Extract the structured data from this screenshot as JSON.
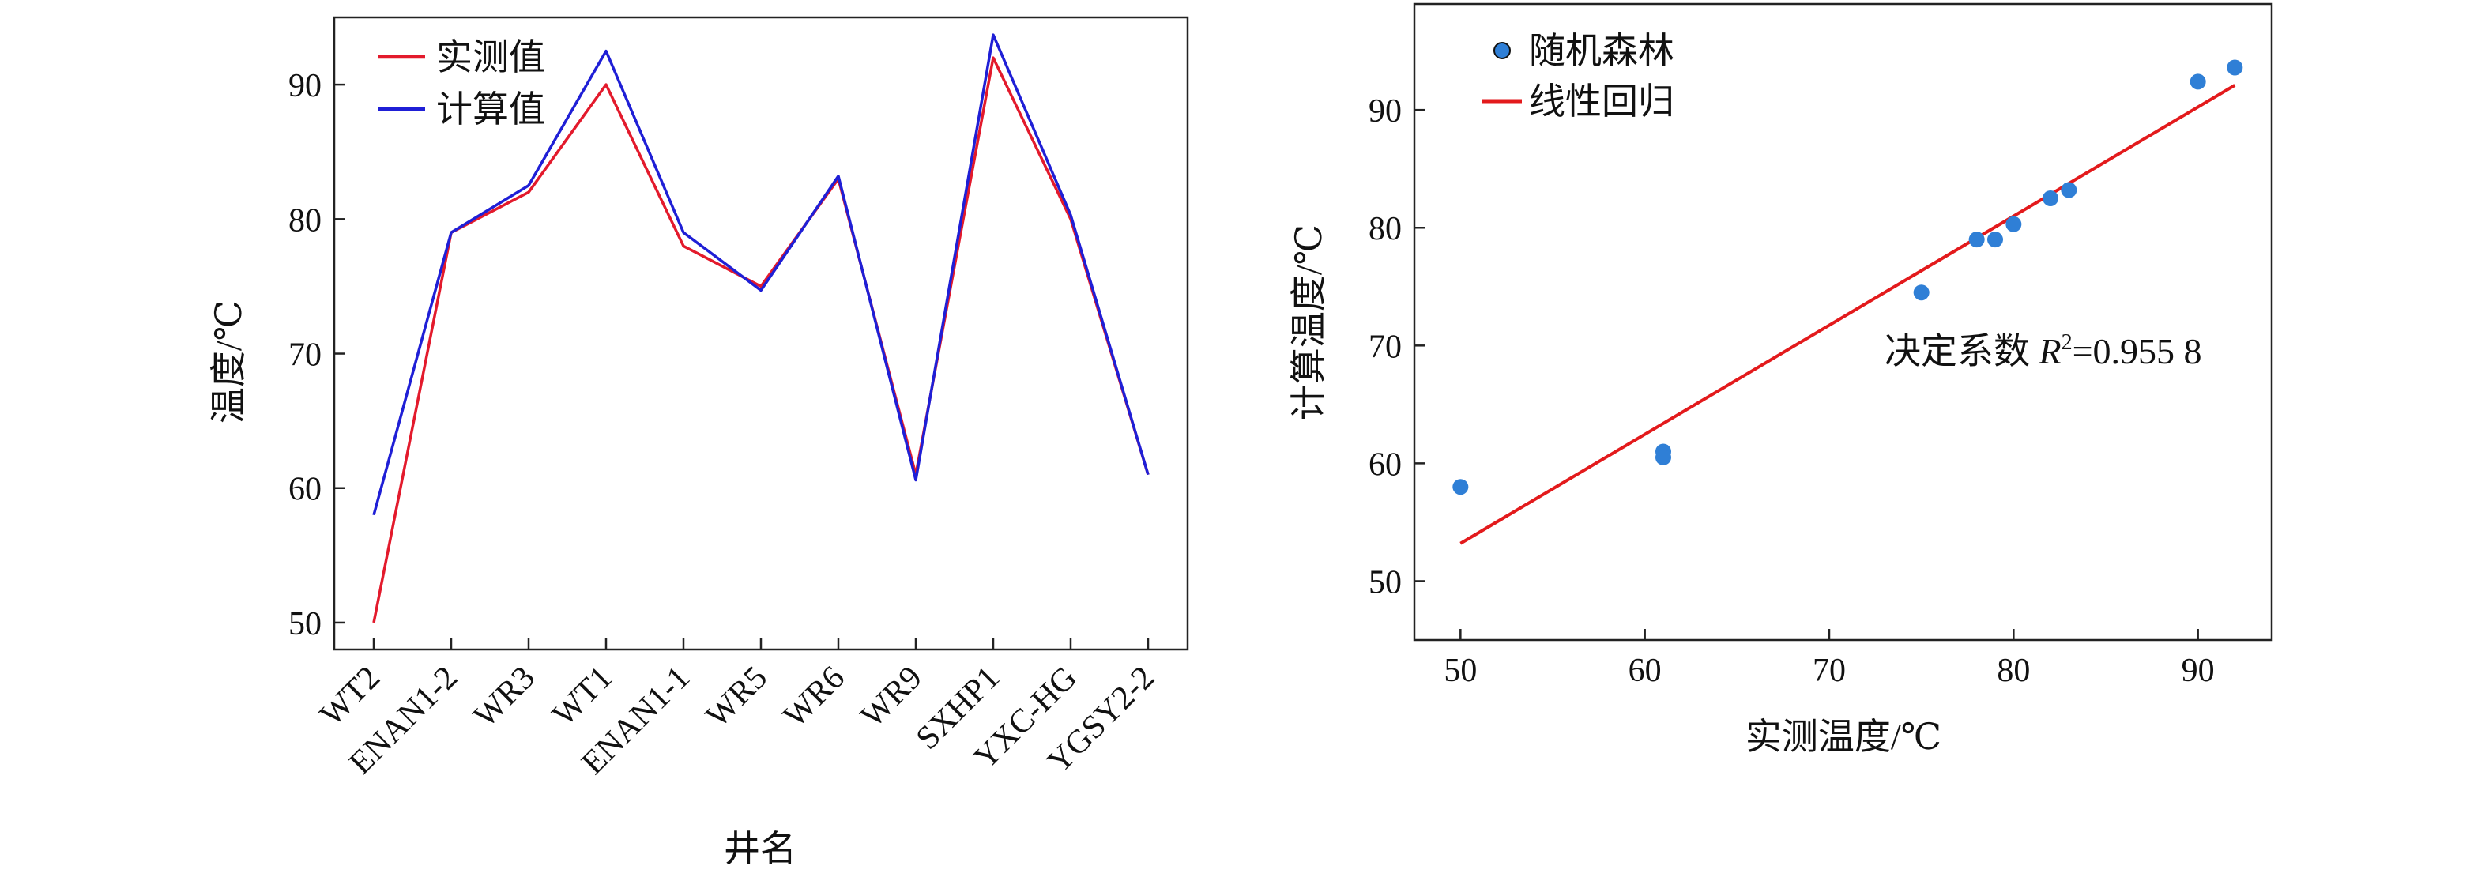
{
  "chart_data": [
    {
      "type": "line",
      "title": "",
      "xlabel": "井名",
      "ylabel": "温度/℃",
      "categories": [
        "WT2",
        "ENAN1-2",
        "WR3",
        "WT1",
        "ENAN1-1",
        "WR5",
        "WR6",
        "WR9",
        "SXHP1",
        "YXC-HG",
        "YGSY2-2"
      ],
      "series": [
        {
          "name": "实测值",
          "color": "#e31a2c",
          "values": [
            50,
            79,
            82,
            90,
            78,
            75,
            83,
            61,
            92,
            80,
            61
          ]
        },
        {
          "name": "计算值",
          "color": "#1f1fd6",
          "values": [
            58,
            79,
            82.5,
            92.5,
            79,
            74.7,
            83.2,
            60.6,
            93.7,
            80.3,
            61
          ]
        }
      ],
      "ylim": [
        48,
        95
      ],
      "yticks": [
        50,
        60,
        70,
        80,
        90
      ],
      "legend": "top-left",
      "grid": false
    },
    {
      "type": "scatter",
      "title": "",
      "xlabel": "实测温度/℃",
      "ylabel": "计算温度/℃",
      "series": [
        {
          "name": "随机森林",
          "color": "#2f7fd6",
          "points": [
            [
              50,
              58
            ],
            [
              61,
              61
            ],
            [
              61,
              60.5
            ],
            [
              75,
              74.5
            ],
            [
              78,
              79
            ],
            [
              79,
              79
            ],
            [
              80,
              80.3
            ],
            [
              82,
              82.5
            ],
            [
              83,
              83.2
            ],
            [
              90,
              92.4
            ],
            [
              92,
              93.6
            ]
          ]
        },
        {
          "name": "线性回归",
          "color": "#e31a1c",
          "line": [
            [
              50,
              53.2
            ],
            [
              92,
              92.1
            ]
          ]
        }
      ],
      "xlim": [
        47.5,
        94
      ],
      "ylim": [
        45,
        99
      ],
      "xticks": [
        50,
        60,
        70,
        80,
        90
      ],
      "yticks": [
        50,
        60,
        70,
        80,
        90
      ],
      "annotation": {
        "prefix": "决定系数 ",
        "var": "R",
        "sup": "2",
        "suffix": "=0.955 8"
      },
      "legend": "top-left",
      "grid": false
    }
  ]
}
